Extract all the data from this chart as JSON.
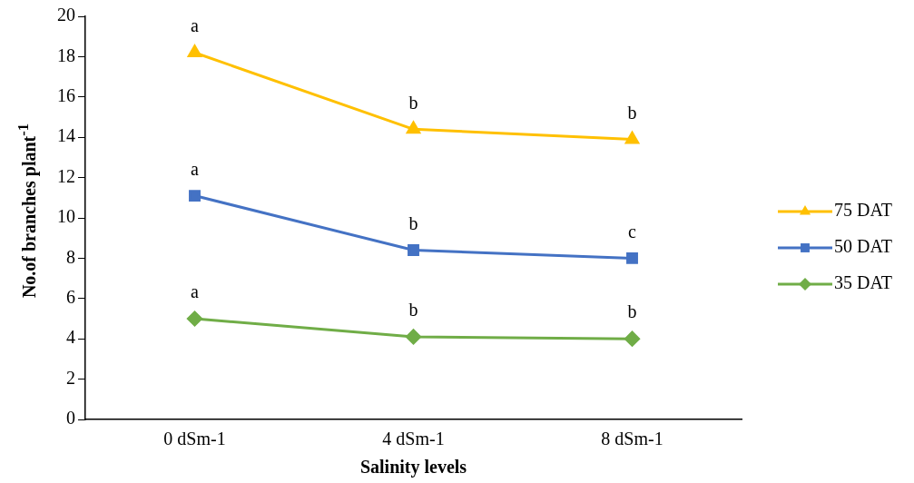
{
  "chart_data": {
    "type": "line",
    "xlabel": "Salinity levels",
    "ylabel": "No.of branches plant$^{-1}$",
    "categories": [
      "0 dSm-1",
      "4 dSm-1",
      "8 dSm-1"
    ],
    "series": [
      {
        "name": "75 DAT",
        "color": "#ffc000",
        "marker": "triangle",
        "values": [
          18.2,
          14.4,
          13.9
        ]
      },
      {
        "name": "50 DAT",
        "color": "#4472c4",
        "marker": "square",
        "values": [
          11.1,
          8.4,
          8.0
        ]
      },
      {
        "name": "35 DAT",
        "color": "#70ad47",
        "marker": "diamond",
        "values": [
          5.0,
          4.1,
          4.0
        ]
      }
    ],
    "ylim": [
      0,
      20
    ],
    "yticks": [
      0,
      2,
      4,
      6,
      8,
      10,
      12,
      14,
      16,
      18,
      20
    ],
    "grid": false,
    "legend": "right",
    "line_style": "solid",
    "annotations": [
      {
        "text": "a",
        "x": "0 dSm-1",
        "y": 18.2
      },
      {
        "text": "b",
        "x": "4 dSm-1",
        "y": 14.4
      },
      {
        "text": "b",
        "x": "8 dSm-1",
        "y": 13.9
      },
      {
        "text": "a",
        "x": "0 dSm-1",
        "y": 11.1
      },
      {
        "text": "b",
        "x": "4 dSm-1",
        "y": 8.4
      },
      {
        "text": "c",
        "x": "8 dSm-1",
        "y": 8.0
      },
      {
        "text": "a",
        "x": "0 dSm-1",
        "y": 5.0
      },
      {
        "text": "b",
        "x": "4 dSm-1",
        "y": 4.1
      },
      {
        "text": "b",
        "x": "8 dSm-1",
        "y": 4.0
      }
    ]
  }
}
